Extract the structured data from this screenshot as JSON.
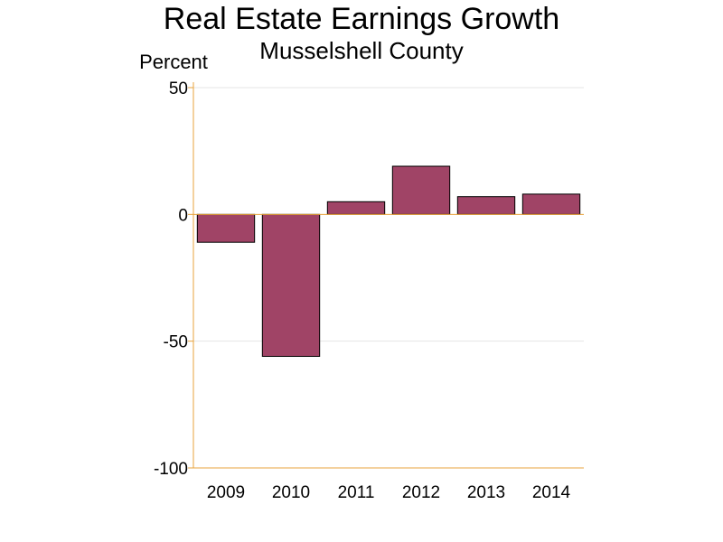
{
  "chart_data": {
    "type": "bar",
    "title": "Real Estate Earnings Growth",
    "subtitle": "Musselshell County",
    "ylabel": "Percent",
    "xlabel": "",
    "categories": [
      "2009",
      "2010",
      "2011",
      "2012",
      "2013",
      "2014"
    ],
    "values": [
      -11,
      -56,
      5,
      19,
      7,
      8
    ],
    "ylim": [
      -100,
      50
    ],
    "yticks": [
      "-100",
      "-50",
      "0",
      "50"
    ],
    "grid": true,
    "legend": "none",
    "colors": {
      "bar_fill": "#a04466",
      "bar_stroke": "#000000",
      "axis": "#e8a33c",
      "grid": "#e6e6e6"
    }
  }
}
